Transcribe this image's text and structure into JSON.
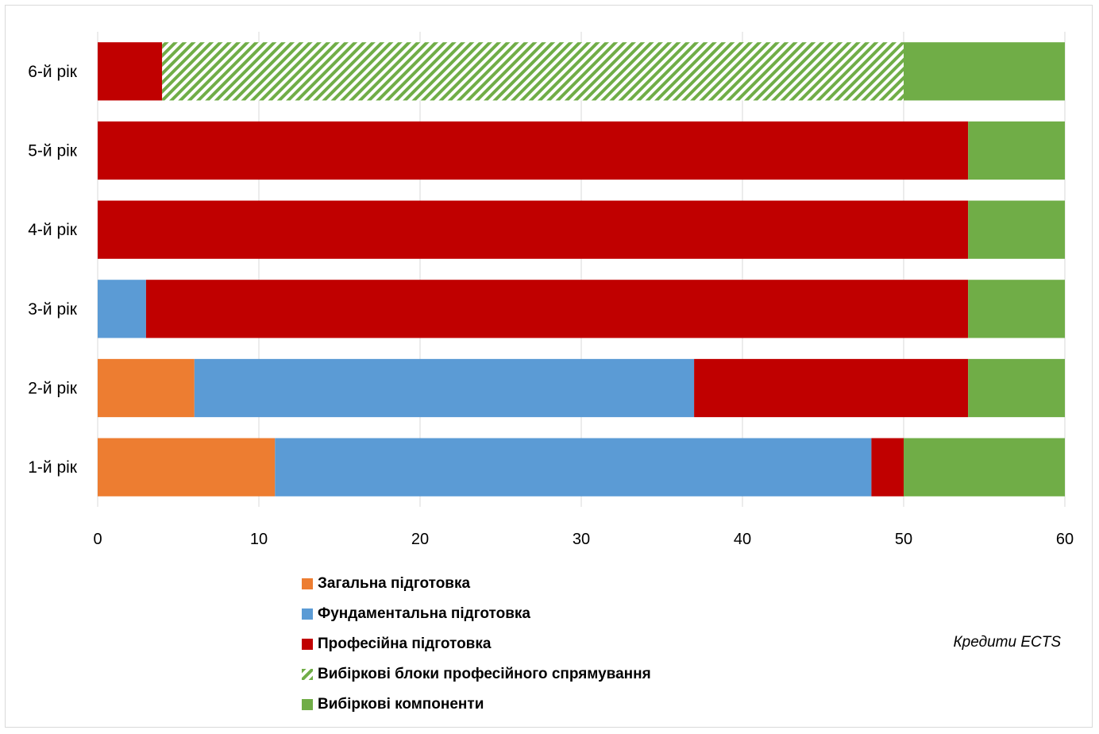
{
  "chart_data": {
    "type": "bar",
    "orientation": "horizontal",
    "stacked": true,
    "categories": [
      "1-й рік",
      "2-й рік",
      "3-й рік",
      "4-й рік",
      "5-й рік",
      "6-й рік"
    ],
    "series": [
      {
        "name": "Загальна  підготовка",
        "color": "#ED7D31",
        "pattern": "solid",
        "values": [
          11,
          6,
          0,
          0,
          0,
          0
        ]
      },
      {
        "name": "Фундаментальна підготовка",
        "color": "#5B9BD5",
        "pattern": "solid",
        "values": [
          37,
          31,
          3,
          0,
          0,
          0
        ]
      },
      {
        "name": "Професійна підготовка",
        "color": "#C00000",
        "pattern": "solid",
        "values": [
          2,
          17,
          51,
          54,
          54,
          4
        ]
      },
      {
        "name": "Вибіркові блоки професійного спрямування",
        "color": "#70AD47",
        "pattern": "hatched",
        "values": [
          0,
          0,
          0,
          0,
          0,
          46
        ]
      },
      {
        "name": "Вибіркові компоненти",
        "color": "#70AD47",
        "pattern": "solid",
        "values": [
          10,
          6,
          6,
          6,
          6,
          10
        ]
      }
    ],
    "xlim": [
      0,
      60
    ],
    "xticks": [
      0,
      10,
      20,
      30,
      40,
      50,
      60
    ],
    "xlabel": "Кредити ECTS",
    "grid": true,
    "legend": "bottom"
  }
}
